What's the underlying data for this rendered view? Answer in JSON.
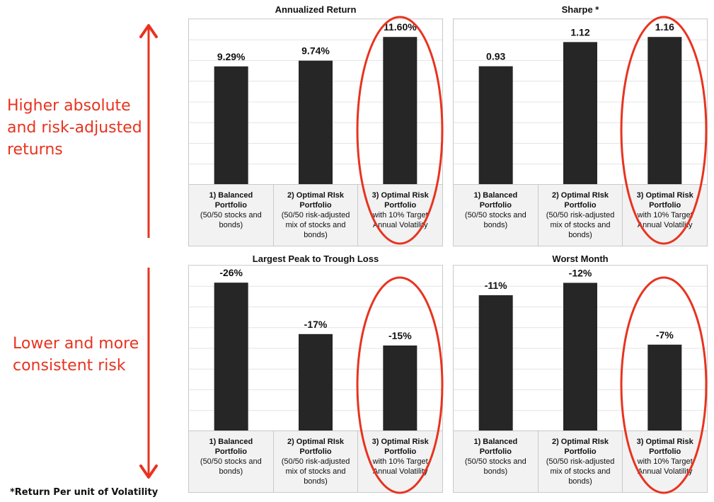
{
  "annotations": {
    "top": [
      "Higher absolute",
      "and risk-adjusted",
      "returns"
    ],
    "bottom": [
      "Lower and more",
      "consistent risk"
    ],
    "footnote": "*Return Per unit of Volatility",
    "accent_color": "#e8331f"
  },
  "categories": [
    {
      "line1": "1) Balanced",
      "line2": "Portfolio",
      "sub": [
        "(50/50 stocks and",
        "bonds)"
      ]
    },
    {
      "line1": "2) Optimal RIsk",
      "line2": "Portfolio",
      "sub": [
        "(50/50 risk-adjusted",
        "mix of stocks and",
        "bonds)"
      ]
    },
    {
      "line1": "3) Optimal Risk",
      "line2": "Portfolio",
      "sub": [
        "with 10% Target",
        "Annual Volatility"
      ]
    }
  ],
  "chart_data": [
    {
      "type": "bar",
      "title": "Annualized Return",
      "categories": [
        "1) Balanced Portfolio",
        "2) Optimal RIsk Portfolio",
        "3) Optimal Risk Portfolio"
      ],
      "values": [
        9.29,
        9.74,
        11.6
      ],
      "data_labels": [
        "9.29%",
        "9.74%",
        "11.60%"
      ],
      "ylim": [
        0,
        13
      ],
      "bar_color": "#262626",
      "grid": true,
      "highlighted": 2
    },
    {
      "type": "bar",
      "title": "Sharpe *",
      "categories": [
        "1) Balanced Portfolio",
        "2) Optimal RIsk Portfolio",
        "3) Optimal Risk Portfolio"
      ],
      "values": [
        0.93,
        1.12,
        1.16
      ],
      "data_labels": [
        "0.93",
        "1.12",
        "1.16"
      ],
      "ylim": [
        0,
        1.3
      ],
      "bar_color": "#262626",
      "grid": true,
      "highlighted": 2
    },
    {
      "type": "bar",
      "title": "Largest Peak to Trough Loss",
      "categories": [
        "1) Balanced Portfolio",
        "2) Optimal RIsk Portfolio",
        "3) Optimal Risk Portfolio"
      ],
      "values": [
        -26,
        -17,
        -15
      ],
      "data_labels": [
        "-26%",
        "-17%",
        "-15%"
      ],
      "ylim": [
        0,
        -29
      ],
      "bar_color": "#262626",
      "grid": true,
      "highlighted": 2
    },
    {
      "type": "bar",
      "title": "Worst Month",
      "categories": [
        "1) Balanced Portfolio",
        "2) Optimal RIsk Portfolio",
        "3) Optimal Risk Portfolio"
      ],
      "values": [
        -11,
        -12,
        -7
      ],
      "data_labels": [
        "-11%",
        "-12%",
        "-7%"
      ],
      "ylim": [
        0,
        -13.4
      ],
      "bar_color": "#262626",
      "grid": true,
      "highlighted": 2
    }
  ]
}
